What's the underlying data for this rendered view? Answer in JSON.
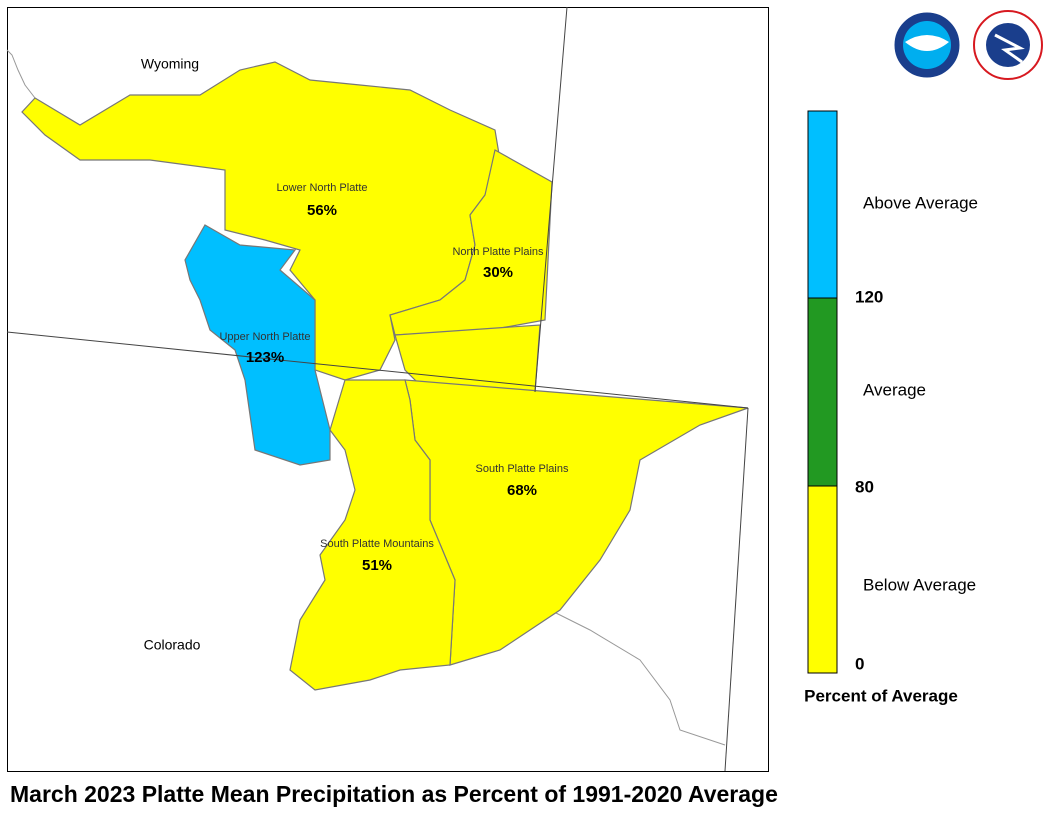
{
  "title": "March 2023 Platte Mean Precipitation as Percent of 1991-2020 Average",
  "states": [
    "Wyoming",
    "Colorado"
  ],
  "regions": [
    {
      "name": "Lower North Platte",
      "value": "56%"
    },
    {
      "name": "North Platte Plains",
      "value": "30%"
    },
    {
      "name": "Upper North Platte",
      "value": "123%"
    },
    {
      "name": "South Platte Plains",
      "value": "68%"
    },
    {
      "name": "South Platte Mountains",
      "value": "51%"
    }
  ],
  "legend": {
    "title": "Percent of Average",
    "categories": [
      "Above Average",
      "Average",
      "Below Average"
    ],
    "ticks": [
      "120",
      "80",
      "0"
    ]
  }
}
